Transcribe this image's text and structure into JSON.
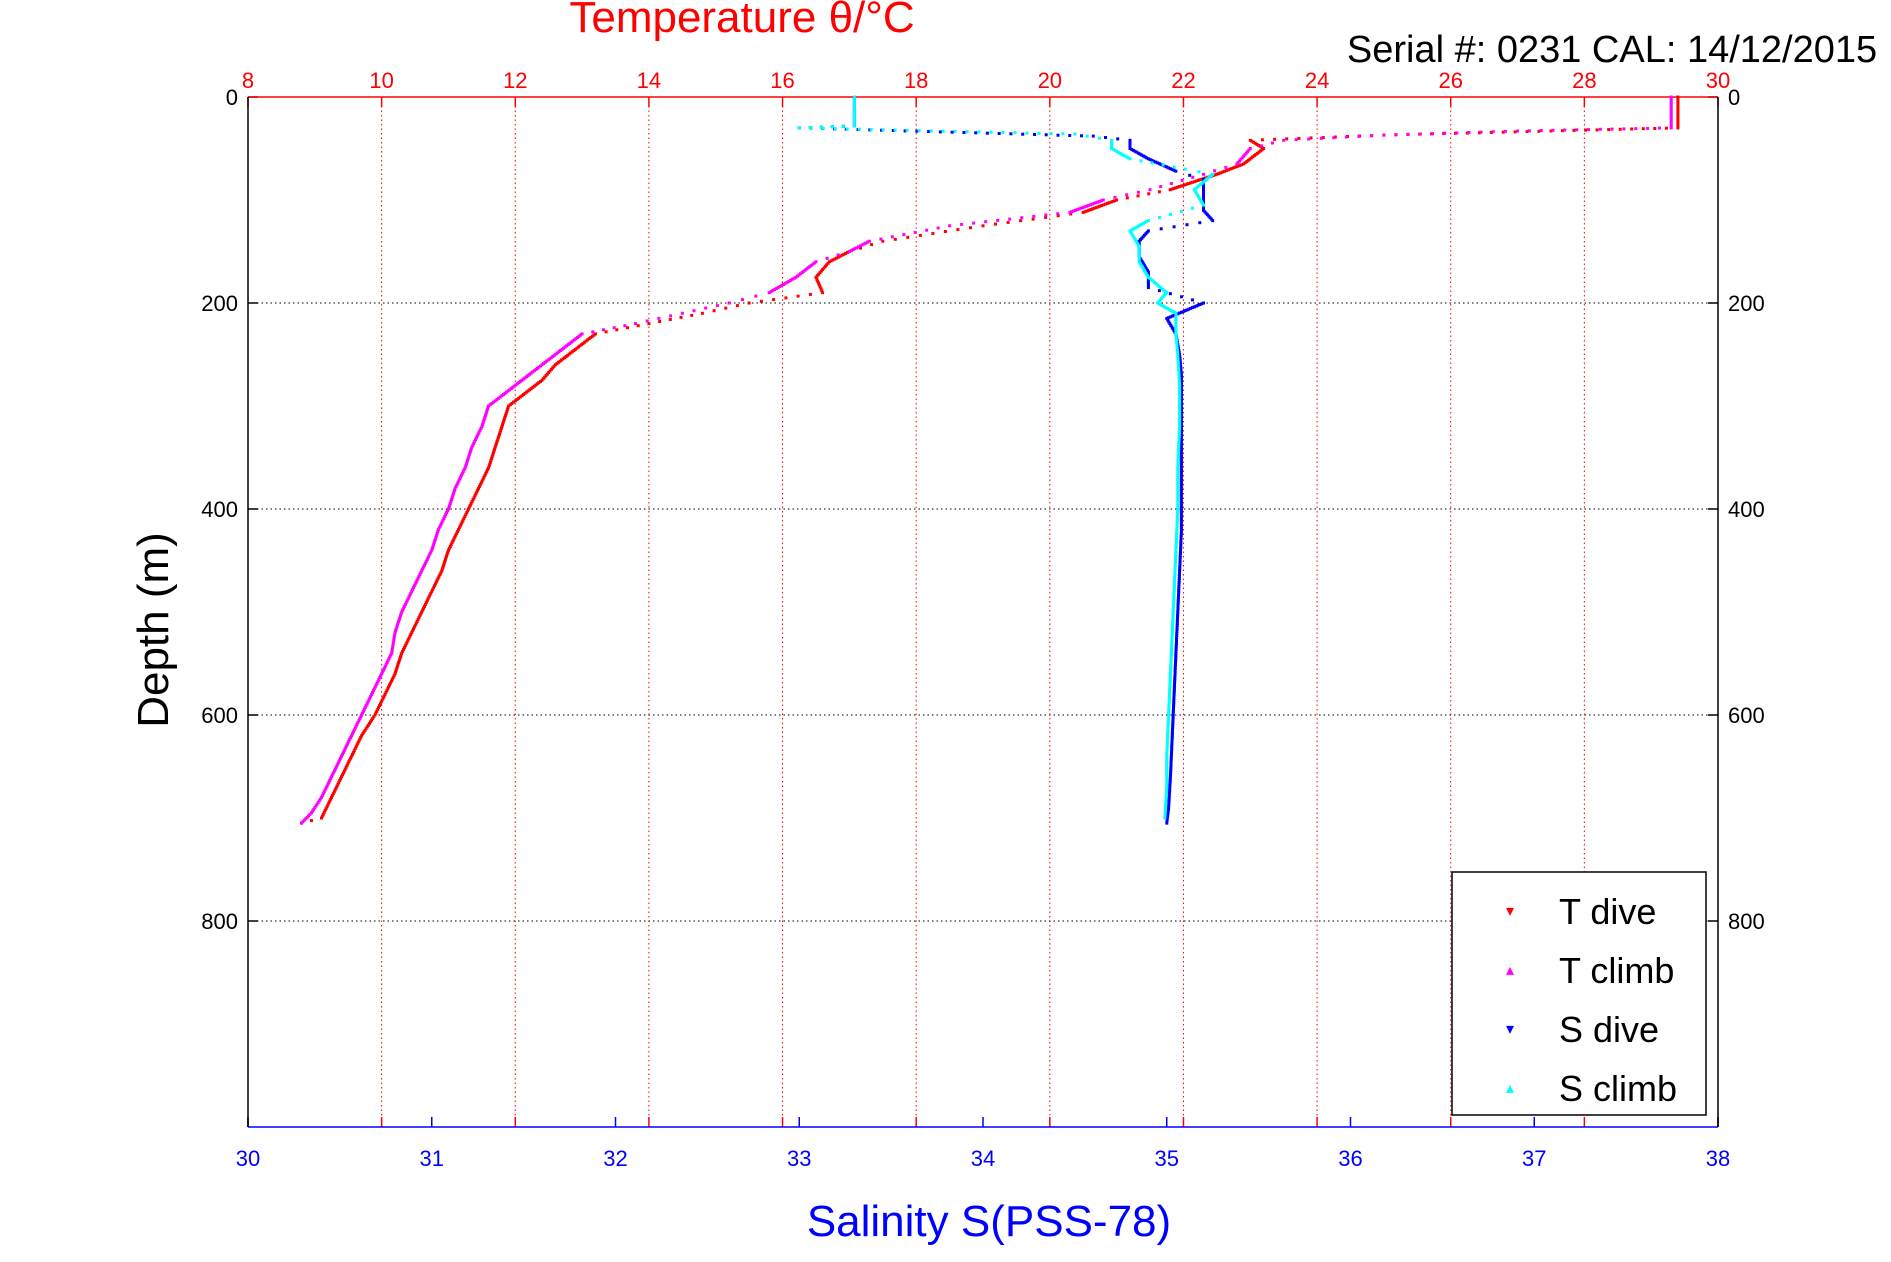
{
  "chart_data": {
    "type": "scatter",
    "title": "Temperature θ/°C",
    "subtitle": "Serial #: 0231  CAL: 14/12/2015",
    "temperature_axis": {
      "label": "Temperature θ/°C",
      "range": [
        8,
        30
      ],
      "ticks": [
        "8",
        "10",
        "12",
        "14",
        "16",
        "18",
        "20",
        "22",
        "24",
        "26",
        "28",
        "30"
      ],
      "color": "#ff0000",
      "grid": true
    },
    "salinity_axis": {
      "label": "Salinity S(PSS-78)",
      "range": [
        30,
        38
      ],
      "ticks": [
        "30",
        "31",
        "32",
        "33",
        "34",
        "35",
        "36",
        "37",
        "38"
      ],
      "color": "#0000ff"
    },
    "depth_axis": {
      "label": "Depth (m)",
      "range": [
        0,
        1000
      ],
      "reversed": true,
      "ticks": [
        "0",
        "200",
        "400",
        "600",
        "800"
      ],
      "grid": true
    },
    "legend": {
      "placement": "bottom-right",
      "entries": [
        {
          "label": "T dive",
          "color": "#ff0000",
          "marker": "▾"
        },
        {
          "label": "T climb",
          "color": "#ff00ff",
          "marker": "▴"
        },
        {
          "label": "S dive",
          "color": "#0000ff",
          "marker": "▾"
        },
        {
          "label": "S climb",
          "color": "#00ffff",
          "marker": "▴"
        }
      ]
    },
    "series": [
      {
        "name": "T dive",
        "axis": "temperature",
        "color": "#ff0000",
        "points": [
          [
            29.4,
            0
          ],
          [
            29.4,
            15
          ],
          [
            29.4,
            30
          ],
          [
            27.5,
            33
          ],
          [
            25,
            37
          ],
          [
            23,
            42
          ],
          [
            23.2,
            50
          ],
          [
            22.9,
            65
          ],
          [
            22.5,
            75
          ],
          [
            21.8,
            90
          ],
          [
            21,
            100
          ],
          [
            20.5,
            112
          ],
          [
            19,
            125
          ],
          [
            17.5,
            140
          ],
          [
            17,
            150
          ],
          [
            16.7,
            160
          ],
          [
            16.5,
            175
          ],
          [
            16.6,
            190
          ],
          [
            15.5,
            200
          ],
          [
            14.8,
            210
          ],
          [
            14,
            220
          ],
          [
            13.2,
            230
          ],
          [
            12.9,
            245
          ],
          [
            12.6,
            260
          ],
          [
            12.4,
            275
          ],
          [
            12.1,
            290
          ],
          [
            11.9,
            300
          ],
          [
            11.8,
            320
          ],
          [
            11.7,
            340
          ],
          [
            11.6,
            360
          ],
          [
            11.45,
            380
          ],
          [
            11.3,
            400
          ],
          [
            11.15,
            420
          ],
          [
            11.0,
            440
          ],
          [
            10.9,
            460
          ],
          [
            10.75,
            480
          ],
          [
            10.6,
            500
          ],
          [
            10.45,
            520
          ],
          [
            10.3,
            540
          ],
          [
            10.2,
            560
          ],
          [
            10.05,
            580
          ],
          [
            9.9,
            600
          ],
          [
            9.7,
            620
          ],
          [
            9.55,
            640
          ],
          [
            9.4,
            660
          ],
          [
            9.25,
            680
          ],
          [
            9.1,
            700
          ],
          [
            8.8,
            705
          ]
        ]
      },
      {
        "name": "T climb",
        "axis": "temperature",
        "color": "#ff00ff",
        "points": [
          [
            29.3,
            0
          ],
          [
            29.3,
            15
          ],
          [
            29.3,
            30
          ],
          [
            27,
            33
          ],
          [
            25,
            37
          ],
          [
            23.5,
            42
          ],
          [
            23.0,
            50
          ],
          [
            22.8,
            65
          ],
          [
            22.3,
            75
          ],
          [
            21.5,
            90
          ],
          [
            20.8,
            100
          ],
          [
            20.3,
            112
          ],
          [
            18.5,
            125
          ],
          [
            17.3,
            140
          ],
          [
            17,
            150
          ],
          [
            16.5,
            160
          ],
          [
            16.2,
            175
          ],
          [
            15.8,
            190
          ],
          [
            15.2,
            200
          ],
          [
            14.5,
            210
          ],
          [
            13.8,
            220
          ],
          [
            13.0,
            230
          ],
          [
            12.7,
            245
          ],
          [
            12.4,
            260
          ],
          [
            12.1,
            275
          ],
          [
            11.8,
            290
          ],
          [
            11.6,
            300
          ],
          [
            11.5,
            320
          ],
          [
            11.35,
            340
          ],
          [
            11.25,
            360
          ],
          [
            11.1,
            380
          ],
          [
            11.0,
            400
          ],
          [
            10.85,
            420
          ],
          [
            10.75,
            440
          ],
          [
            10.6,
            460
          ],
          [
            10.45,
            480
          ],
          [
            10.3,
            500
          ],
          [
            10.2,
            520
          ],
          [
            10.15,
            540
          ],
          [
            10.0,
            560
          ],
          [
            9.85,
            580
          ],
          [
            9.7,
            600
          ],
          [
            9.55,
            620
          ],
          [
            9.4,
            640
          ],
          [
            9.25,
            660
          ],
          [
            9.1,
            680
          ],
          [
            8.95,
            695
          ],
          [
            8.8,
            705
          ]
        ]
      },
      {
        "name": "S dive",
        "axis": "salinity",
        "color": "#0000ff",
        "points": [
          [
            33.3,
            0
          ],
          [
            33.3,
            15
          ],
          [
            33.3,
            28
          ],
          [
            33.0,
            30
          ],
          [
            34.6,
            38
          ],
          [
            34.8,
            42
          ],
          [
            34.8,
            50
          ],
          [
            34.9,
            60
          ],
          [
            35.05,
            72
          ],
          [
            35.2,
            80
          ],
          [
            35.2,
            95
          ],
          [
            35.2,
            110
          ],
          [
            35.25,
            120
          ],
          [
            34.9,
            130
          ],
          [
            34.85,
            140
          ],
          [
            34.85,
            155
          ],
          [
            34.9,
            170
          ],
          [
            34.9,
            185
          ],
          [
            35.2,
            200
          ],
          [
            35.0,
            215
          ],
          [
            35.05,
            230
          ],
          [
            35.07,
            250
          ],
          [
            35.08,
            270
          ],
          [
            35.08,
            300
          ],
          [
            35.08,
            340
          ],
          [
            35.08,
            380
          ],
          [
            35.08,
            420
          ],
          [
            35.07,
            460
          ],
          [
            35.06,
            500
          ],
          [
            35.05,
            540
          ],
          [
            35.04,
            580
          ],
          [
            35.03,
            620
          ],
          [
            35.02,
            660
          ],
          [
            35.01,
            690
          ],
          [
            35.0,
            705
          ]
        ]
      },
      {
        "name": "S climb",
        "axis": "salinity",
        "color": "#00ffff",
        "points": [
          [
            33.3,
            0
          ],
          [
            33.3,
            15
          ],
          [
            33.3,
            28
          ],
          [
            33.0,
            30
          ],
          [
            34.5,
            36
          ],
          [
            34.7,
            42
          ],
          [
            34.7,
            50
          ],
          [
            34.8,
            60
          ],
          [
            35.1,
            70
          ],
          [
            35.25,
            75
          ],
          [
            35.15,
            90
          ],
          [
            35.2,
            105
          ],
          [
            34.9,
            120
          ],
          [
            34.8,
            130
          ],
          [
            34.85,
            145
          ],
          [
            34.85,
            160
          ],
          [
            34.9,
            175
          ],
          [
            35.0,
            190
          ],
          [
            34.95,
            200
          ],
          [
            35.05,
            210
          ],
          [
            35.05,
            230
          ],
          [
            35.06,
            250
          ],
          [
            35.07,
            280
          ],
          [
            35.07,
            320
          ],
          [
            35.06,
            360
          ],
          [
            35.06,
            400
          ],
          [
            35.05,
            440
          ],
          [
            35.04,
            480
          ],
          [
            35.03,
            520
          ],
          [
            35.02,
            560
          ],
          [
            35.01,
            600
          ],
          [
            35.0,
            640
          ],
          [
            35.0,
            670
          ],
          [
            34.99,
            700
          ]
        ]
      }
    ]
  }
}
